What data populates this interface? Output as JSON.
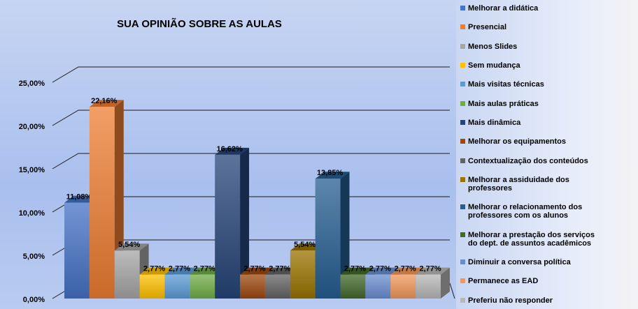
{
  "chart_data": {
    "type": "bar3d",
    "title": "SUA OPINIÃO SOBRE AS AULAS",
    "categories": [
      null
    ],
    "ylim": [
      0,
      25
    ],
    "yticks": [
      {
        "value": 0,
        "label": "0,00%"
      },
      {
        "value": 5,
        "label": "5,00%"
      },
      {
        "value": 10,
        "label": "10,00%"
      },
      {
        "value": 15,
        "label": "15,00%"
      },
      {
        "value": 20,
        "label": "20,00%"
      },
      {
        "value": 25,
        "label": "25,00%"
      }
    ],
    "grid": true,
    "legend": "right",
    "series": [
      {
        "name": "Melhorar a didática",
        "color": "#4472c4",
        "values": [
          11.08
        ],
        "value_labels": [
          "11,08%"
        ]
      },
      {
        "name": "Presencial",
        "color": "#ed7d31",
        "values": [
          22.16
        ],
        "value_labels": [
          "22,16%"
        ]
      },
      {
        "name": "Menos Slides",
        "color": "#a5a5a5",
        "values": [
          5.54
        ],
        "value_labels": [
          "5,54%"
        ]
      },
      {
        "name": "Sem mudança",
        "color": "#ffc000",
        "values": [
          2.77
        ],
        "value_labels": [
          "2,77%"
        ]
      },
      {
        "name": "Mais visitas técnicas",
        "color": "#5b9bd5",
        "values": [
          2.77
        ],
        "value_labels": [
          "2,77%"
        ]
      },
      {
        "name": "Mais aulas práticas",
        "color": "#70ad47",
        "values": [
          2.77
        ],
        "value_labels": [
          "2,77%"
        ]
      },
      {
        "name": "Mais dinâmica",
        "color": "#264478",
        "values": [
          16.62
        ],
        "value_labels": [
          "16,62%"
        ]
      },
      {
        "name": "Melhorar os equipamentos",
        "color": "#9e480e",
        "values": [
          2.77
        ],
        "value_labels": [
          "2,77%"
        ]
      },
      {
        "name": "Contextualização dos conteúdos",
        "color": "#636363",
        "values": [
          2.77
        ],
        "value_labels": [
          "2,77%"
        ]
      },
      {
        "name": "Melhorar a assiduidade dos professores",
        "color": "#997300",
        "values": [
          5.54
        ],
        "value_labels": [
          "5,54%"
        ]
      },
      {
        "name": "Melhorar o relacionamento dos professores com os alunos",
        "color": "#255e91",
        "values": [
          13.85
        ],
        "value_labels": [
          "13,85%"
        ]
      },
      {
        "name": "Melhorar a prestação dos serviços do dept. de assuntos acadêmicos",
        "color": "#43682b",
        "values": [
          2.77
        ],
        "value_labels": [
          "2,77%"
        ]
      },
      {
        "name": "Diminuir a conversa política",
        "color": "#698ed0",
        "values": [
          2.77
        ],
        "value_labels": [
          "2,77%"
        ]
      },
      {
        "name": "Permanece as EAD",
        "color": "#f1975a",
        "values": [
          2.77
        ],
        "value_labels": [
          "2,77%"
        ]
      },
      {
        "name": "Preferiu não responder",
        "color": "#b7b7b7",
        "values": [
          2.77
        ],
        "value_labels": [
          "2,77%"
        ]
      }
    ]
  }
}
